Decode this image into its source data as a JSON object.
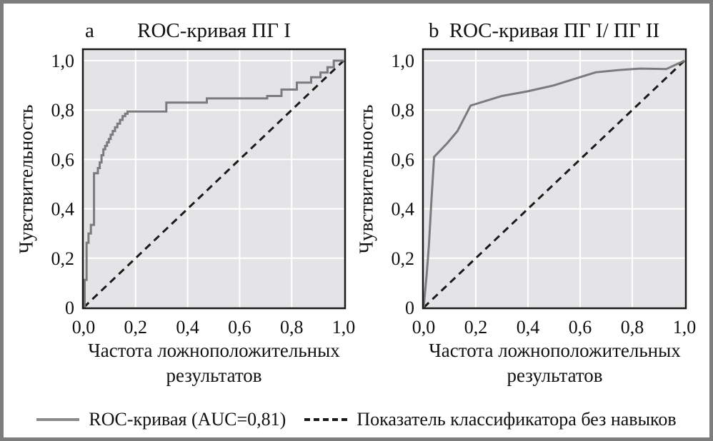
{
  "figure": {
    "border_color": "#7d7d7d",
    "background": "#ffffff",
    "text_color": "#111111"
  },
  "legend": {
    "items": [
      {
        "label": "ROC-кривая (AUC=0,81)",
        "line_style": "solid",
        "color": "#8a8a8c"
      },
      {
        "label": "Показатель классификатора без навыков",
        "line_style": "dashed",
        "color": "#1a1a1a"
      }
    ]
  },
  "chart_data": [
    {
      "type": "line",
      "panel_letter": "a",
      "title": "ROC-кривая ПГ I",
      "xlabel": "Частота ложноположительных результатов",
      "ylabel": "Чувствительность",
      "xlim": [
        0,
        1.005
      ],
      "ylim": [
        0,
        1.046
      ],
      "grid": true,
      "plot_bg": "#e4e4e6",
      "grid_color": "#ffffff",
      "frame_color": "#1a1a1a",
      "xticks": [
        0,
        0.2,
        0.4,
        0.6,
        0.8,
        1.0
      ],
      "xtick_labels": [
        "0,0",
        "0,2",
        "0,4",
        "0,6",
        "0,8",
        "1,0"
      ],
      "yticks": [
        0,
        0.2,
        0.4,
        0.6,
        0.8,
        1.0
      ],
      "ytick_labels": [
        "0",
        "0,2",
        "0,4",
        "0,6",
        "0,8",
        "1,0"
      ],
      "series": [
        {
          "name": "Показатель классификатора без навыков",
          "style": "dashed",
          "color": "#1a1a1a",
          "points": [
            [
              0,
              0
            ],
            [
              1,
              1
            ]
          ]
        },
        {
          "name": "ROC-кривая (AUC=0,81)",
          "style": "solid",
          "color": "#7b7b7d",
          "points": [
            [
              0.004,
              0
            ],
            [
              0.004,
              0.112
            ],
            [
              0.0115,
              0.112
            ],
            [
              0.0115,
              0.262
            ],
            [
              0.019,
              0.262
            ],
            [
              0.019,
              0.3
            ],
            [
              0.028,
              0.3
            ],
            [
              0.028,
              0.335
            ],
            [
              0.04,
              0.335
            ],
            [
              0.04,
              0.544
            ],
            [
              0.055,
              0.544
            ],
            [
              0.055,
              0.565
            ],
            [
              0.062,
              0.565
            ],
            [
              0.062,
              0.588
            ],
            [
              0.069,
              0.588
            ],
            [
              0.069,
              0.617
            ],
            [
              0.076,
              0.617
            ],
            [
              0.076,
              0.641
            ],
            [
              0.083,
              0.641
            ],
            [
              0.083,
              0.655
            ],
            [
              0.09,
              0.655
            ],
            [
              0.09,
              0.669
            ],
            [
              0.097,
              0.669
            ],
            [
              0.097,
              0.683
            ],
            [
              0.104,
              0.683
            ],
            [
              0.104,
              0.7
            ],
            [
              0.112,
              0.7
            ],
            [
              0.112,
              0.715
            ],
            [
              0.121,
              0.715
            ],
            [
              0.121,
              0.73
            ],
            [
              0.13,
              0.73
            ],
            [
              0.13,
              0.745
            ],
            [
              0.14,
              0.745
            ],
            [
              0.14,
              0.76
            ],
            [
              0.15,
              0.76
            ],
            [
              0.15,
              0.775
            ],
            [
              0.16,
              0.775
            ],
            [
              0.16,
              0.785
            ],
            [
              0.169,
              0.785
            ],
            [
              0.169,
              0.794
            ],
            [
              0.318,
              0.794
            ],
            [
              0.318,
              0.83
            ],
            [
              0.474,
              0.83
            ],
            [
              0.474,
              0.847
            ],
            [
              0.706,
              0.847
            ],
            [
              0.706,
              0.857
            ],
            [
              0.761,
              0.857
            ],
            [
              0.761,
              0.883
            ],
            [
              0.82,
              0.883
            ],
            [
              0.82,
              0.911
            ],
            [
              0.875,
              0.911
            ],
            [
              0.875,
              0.933
            ],
            [
              0.911,
              0.933
            ],
            [
              0.911,
              0.952
            ],
            [
              0.938,
              0.952
            ],
            [
              0.938,
              0.973
            ],
            [
              0.962,
              0.973
            ],
            [
              0.962,
              1.0
            ],
            [
              1.0,
              1.0
            ]
          ]
        }
      ]
    },
    {
      "type": "line",
      "panel_letter": "b",
      "title": "ROC-кривая ПГ I/ ПГ II",
      "xlabel": "Частота ложноположительных результатов",
      "ylabel": "Чувствительность",
      "xlim": [
        0,
        1.005
      ],
      "ylim": [
        0,
        1.046
      ],
      "grid": true,
      "plot_bg": "#e4e4e6",
      "grid_color": "#ffffff",
      "frame_color": "#1a1a1a",
      "xticks": [
        0,
        0.2,
        0.4,
        0.6,
        0.8,
        1.0
      ],
      "xtick_labels": [
        "0,0",
        "0,2",
        "0,4",
        "0,6",
        "0,8",
        "1,0"
      ],
      "yticks": [
        0,
        0.2,
        0.4,
        0.6,
        0.8,
        1.0
      ],
      "ytick_labels": [
        "0",
        "0,2",
        "0,4",
        "0,6",
        "0,8",
        "1,0"
      ],
      "series": [
        {
          "name": "Показатель классификатора без навыков",
          "style": "dashed",
          "color": "#1a1a1a",
          "points": [
            [
              0,
              0
            ],
            [
              1,
              1
            ]
          ]
        },
        {
          "name": "ROC-кривая (AUC=0,81)",
          "style": "solid",
          "color": "#7b7b7d",
          "points": [
            [
              0,
              0
            ],
            [
              0.012,
              0.14
            ],
            [
              0.02,
              0.25
            ],
            [
              0.03,
              0.44
            ],
            [
              0.04,
              0.61
            ],
            [
              0.09,
              0.665
            ],
            [
              0.13,
              0.715
            ],
            [
              0.18,
              0.818
            ],
            [
              0.3,
              0.857
            ],
            [
              0.4,
              0.876
            ],
            [
              0.5,
              0.9
            ],
            [
              0.575,
              0.925
            ],
            [
              0.66,
              0.953
            ],
            [
              0.75,
              0.962
            ],
            [
              0.83,
              0.968
            ],
            [
              0.93,
              0.966
            ],
            [
              1.0,
              1.0
            ]
          ]
        }
      ]
    }
  ]
}
